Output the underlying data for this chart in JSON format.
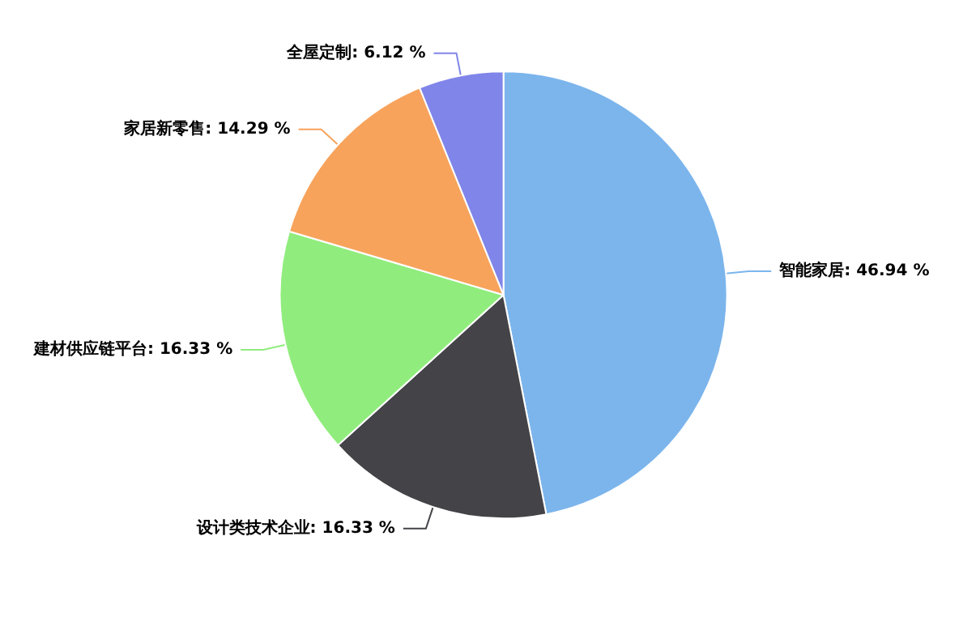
{
  "chart_data": {
    "type": "pie",
    "categories": [
      "智能家居",
      "设计类技术企业",
      "建材供应链平台",
      "家居新零售",
      "全屋定制"
    ],
    "values": [
      46.94,
      16.33,
      16.33,
      14.29,
      6.12
    ],
    "colors": [
      "#7cb5ec",
      "#434348",
      "#90ed7d",
      "#f7a35c",
      "#8085e9"
    ],
    "value_labels": [
      "46.94 %",
      "16.33 %",
      "16.33 %",
      "14.29 %",
      "6.12 %"
    ],
    "legend": false
  }
}
